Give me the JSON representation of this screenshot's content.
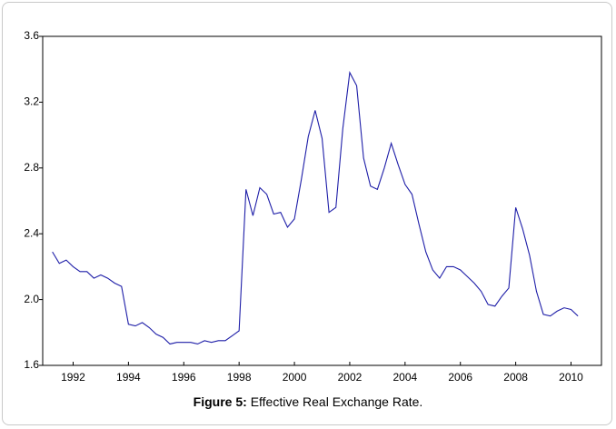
{
  "chart_data": {
    "type": "line",
    "caption_label": "Figure 5:",
    "title": "Effective Real Exchange Rate.",
    "x": [
      1991.25,
      1991.5,
      1991.75,
      1992.0,
      1992.25,
      1992.5,
      1992.75,
      1993.0,
      1993.25,
      1993.5,
      1993.75,
      1994.0,
      1994.25,
      1994.5,
      1994.75,
      1995.0,
      1995.25,
      1995.5,
      1995.75,
      1996.0,
      1996.25,
      1996.5,
      1996.75,
      1997.0,
      1997.25,
      1997.5,
      1997.75,
      1998.0,
      1998.25,
      1998.5,
      1998.75,
      1999.0,
      1999.25,
      1999.5,
      1999.75,
      2000.0,
      2000.25,
      2000.5,
      2000.75,
      2001.0,
      2001.25,
      2001.5,
      2001.75,
      2002.0,
      2002.25,
      2002.5,
      2002.75,
      2003.0,
      2003.25,
      2003.5,
      2003.75,
      2004.0,
      2004.25,
      2004.5,
      2004.75,
      2005.0,
      2005.25,
      2005.5,
      2005.75,
      2006.0,
      2006.25,
      2006.5,
      2006.75,
      2007.0,
      2007.25,
      2007.5,
      2007.75,
      2008.0,
      2008.25,
      2008.5,
      2008.75,
      2009.0,
      2009.25,
      2009.5,
      2009.75,
      2010.0,
      2010.25
    ],
    "series": [
      {
        "color": "#1e1ea8",
        "values": [
          2.29,
          2.22,
          2.24,
          2.2,
          2.17,
          2.17,
          2.13,
          2.15,
          2.13,
          2.1,
          2.08,
          1.85,
          1.84,
          1.86,
          1.83,
          1.79,
          1.77,
          1.73,
          1.74,
          1.74,
          1.74,
          1.73,
          1.75,
          1.74,
          1.75,
          1.75,
          1.78,
          1.81,
          2.67,
          2.51,
          2.68,
          2.64,
          2.52,
          2.53,
          2.44,
          2.49,
          2.73,
          2.99,
          3.15,
          2.98,
          2.53,
          2.56,
          3.04,
          3.38,
          3.3,
          2.86,
          2.69,
          2.67,
          2.8,
          2.95,
          2.82,
          2.7,
          2.64,
          2.46,
          2.29,
          2.18,
          2.13,
          2.2,
          2.2,
          2.18,
          2.14,
          2.1,
          2.05,
          1.97,
          1.96,
          2.02,
          2.07,
          2.56,
          2.43,
          2.27,
          2.05,
          1.91,
          1.9,
          1.93,
          1.95,
          1.94,
          1.9
        ]
      }
    ],
    "xlim": [
      1990.9,
      2011.1
    ],
    "xticks": [
      1992,
      1994,
      1996,
      1998,
      2000,
      2002,
      2004,
      2006,
      2008,
      2010
    ],
    "ylim": [
      1.6,
      3.6
    ],
    "yticks": [
      1.6,
      {
        "value": 2,
        "label": "2.0"
      },
      2.4,
      2.8,
      3.2,
      3.6
    ]
  }
}
